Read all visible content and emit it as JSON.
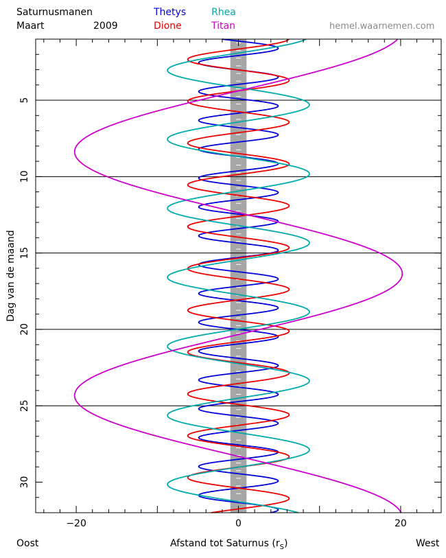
{
  "header": {
    "title_line1": "Saturnusmanen",
    "title_month": "Maart",
    "title_year": "2009",
    "website": "hemel.waarnemen.com"
  },
  "footer": {
    "left": "Oost",
    "center": "Afstand tot Saturnus (r",
    "center_sub": "S",
    "center_close": ")",
    "right": "West"
  },
  "chart_data": {
    "type": "line",
    "title": "Saturnusmanen Maart 2009",
    "xlabel": "Afstand tot Saturnus (rS)",
    "ylabel": "Dag van de maand",
    "xlim": [
      -25,
      25
    ],
    "ylim": [
      1,
      32
    ],
    "y_inverted": true,
    "xticks": [
      -20,
      0,
      20
    ],
    "yticks": [
      5,
      10,
      15,
      20,
      25,
      30
    ],
    "grid": "horizontal lines at days 5, 10, 15, 20, 25",
    "planet": {
      "name": "Saturnus",
      "halfwidth": 1.0,
      "color": "#a6a6a6"
    },
    "series": [
      {
        "name": "Thetys",
        "color": "#0000dd",
        "amplitude": 4.9,
        "period": 1.888,
        "day_max": 1.6
      },
      {
        "name": "Dione",
        "color": "#ee0000",
        "amplitude": 6.25,
        "period": 2.737,
        "day_max": 3.7
      },
      {
        "name": "Rhea",
        "color": "#00aaaa",
        "amplitude": 8.75,
        "period": 4.518,
        "day_max": 5.3
      },
      {
        "name": "Titan",
        "color": "#cc00cc",
        "amplitude": 20.2,
        "period": 15.95,
        "day_max": 0.4
      }
    ]
  }
}
